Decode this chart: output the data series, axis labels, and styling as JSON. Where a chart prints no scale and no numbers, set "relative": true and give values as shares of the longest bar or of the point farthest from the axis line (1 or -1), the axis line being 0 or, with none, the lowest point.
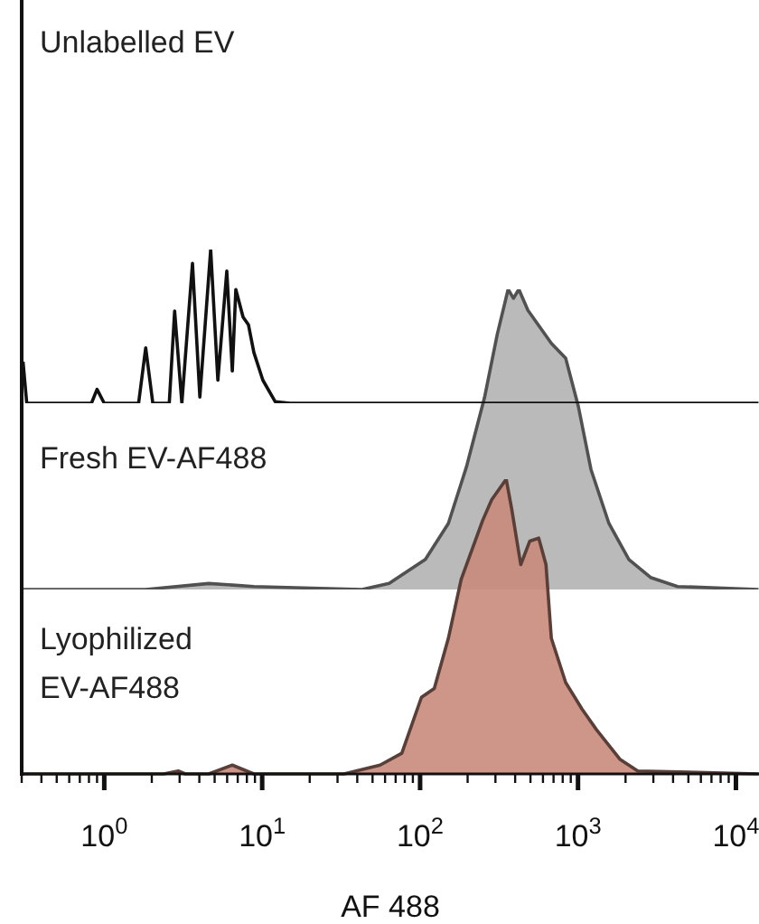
{
  "chart_data": [
    {
      "type": "line",
      "title": "Unlabelled EV",
      "relative": true,
      "log": "x",
      "tick_labels": false,
      "color": "#111111",
      "xlim": [
        0.3,
        14000
      ],
      "x": [
        0.306,
        0.323,
        0.83,
        0.9,
        1,
        1.65,
        1.83,
        2.03,
        2.58,
        2.79,
        3.1,
        3.62,
        4.03,
        4.72,
        5.24,
        5.97,
        6.47,
        6.81,
        7.57,
        8.19,
        8.86,
        10.1,
        12.1,
        15,
        13900
      ],
      "values": [
        0.27,
        0,
        0,
        0.09,
        0,
        0,
        0.36,
        0,
        0,
        0.6,
        0,
        0.91,
        0.04,
        1,
        0.15,
        0.86,
        0.21,
        0.74,
        0.56,
        0.51,
        0.33,
        0.15,
        0.01,
        0,
        0
      ]
    },
    {
      "type": "area",
      "title": "Fresh EV-AF488",
      "relative": true,
      "log": "x",
      "tick_labels": false,
      "color": "#b3b3b3",
      "xlim": [
        0.3,
        14000
      ],
      "x": [
        0.306,
        1.83,
        4.59,
        8.86,
        42.9,
        63.7,
        108,
        151,
        197,
        256,
        308,
        361,
        390,
        422,
        482,
        678,
        836,
        1005,
        1208,
        1570,
        2100,
        2880,
        4270,
        13900
      ],
      "values": [
        0,
        0,
        0.02,
        0.01,
        0,
        0.02,
        0.1,
        0.22,
        0.41,
        0.64,
        0.85,
        1,
        0.97,
        1,
        0.93,
        0.82,
        0.77,
        0.61,
        0.4,
        0.22,
        0.1,
        0.04,
        0.01,
        0
      ]
    },
    {
      "type": "area",
      "title": "Lyophilized EV-AF488",
      "xlabel": "AF 488",
      "relative": true,
      "log": "x",
      "color": "#c98a7c",
      "xlim": [
        0.3,
        14000
      ],
      "xticks": [
        {
          "value": 0.3,
          "label": null
        },
        {
          "value": 0.4,
          "label": null
        },
        {
          "value": 0.5,
          "label": null
        },
        {
          "value": 0.6,
          "label": null
        },
        {
          "value": 0.7,
          "label": null
        },
        {
          "value": 0.8,
          "label": null
        },
        {
          "value": 0.9,
          "label": null
        },
        {
          "value": 1,
          "label": "10$^{0}$"
        },
        {
          "value": 2,
          "label": null
        },
        {
          "value": 3,
          "label": null
        },
        {
          "value": 4,
          "label": null
        },
        {
          "value": 5,
          "label": null
        },
        {
          "value": 6,
          "label": null
        },
        {
          "value": 7,
          "label": null
        },
        {
          "value": 8,
          "label": null
        },
        {
          "value": 9,
          "label": null
        },
        {
          "value": 10,
          "label": "10$^{1}$"
        },
        {
          "value": 20,
          "label": null
        },
        {
          "value": 30,
          "label": null
        },
        {
          "value": 40,
          "label": null
        },
        {
          "value": 50,
          "label": null
        },
        {
          "value": 60,
          "label": null
        },
        {
          "value": 70,
          "label": null
        },
        {
          "value": 80,
          "label": null
        },
        {
          "value": 90,
          "label": null
        },
        {
          "value": 100,
          "label": "10$^{2}$"
        },
        {
          "value": 200,
          "label": null
        },
        {
          "value": 300,
          "label": null
        },
        {
          "value": 400,
          "label": null
        },
        {
          "value": 500,
          "label": null
        },
        {
          "value": 600,
          "label": null
        },
        {
          "value": 700,
          "label": null
        },
        {
          "value": 800,
          "label": null
        },
        {
          "value": 900,
          "label": null
        },
        {
          "value": 1000,
          "label": "10$^{3}$"
        },
        {
          "value": 2000,
          "label": null
        },
        {
          "value": 3000,
          "label": null
        },
        {
          "value": 4000,
          "label": null
        },
        {
          "value": 5000,
          "label": null
        },
        {
          "value": 6000,
          "label": null
        },
        {
          "value": 7000,
          "label": null
        },
        {
          "value": 8000,
          "label": null
        },
        {
          "value": 9000,
          "label": null
        },
        {
          "value": 10000,
          "label": "10$^{4}$"
        }
      ],
      "x": [
        0.306,
        2.38,
        2.94,
        3.26,
        4.59,
        6.47,
        8.86,
        33,
        55.8,
        76.6,
        102,
        123,
        151,
        182,
        249,
        284,
        351,
        380,
        434,
        495,
        564,
        627,
        678,
        836,
        1060,
        1310,
        1840,
        2390,
        13900
      ],
      "values": [
        0,
        0,
        0.01,
        0,
        0,
        0.03,
        0,
        0,
        0.03,
        0.07,
        0.26,
        0.29,
        0.46,
        0.66,
        0.86,
        0.93,
        1,
        0.9,
        0.71,
        0.79,
        0.8,
        0.71,
        0.46,
        0.31,
        0.22,
        0.15,
        0.05,
        0.01,
        0
      ]
    }
  ]
}
